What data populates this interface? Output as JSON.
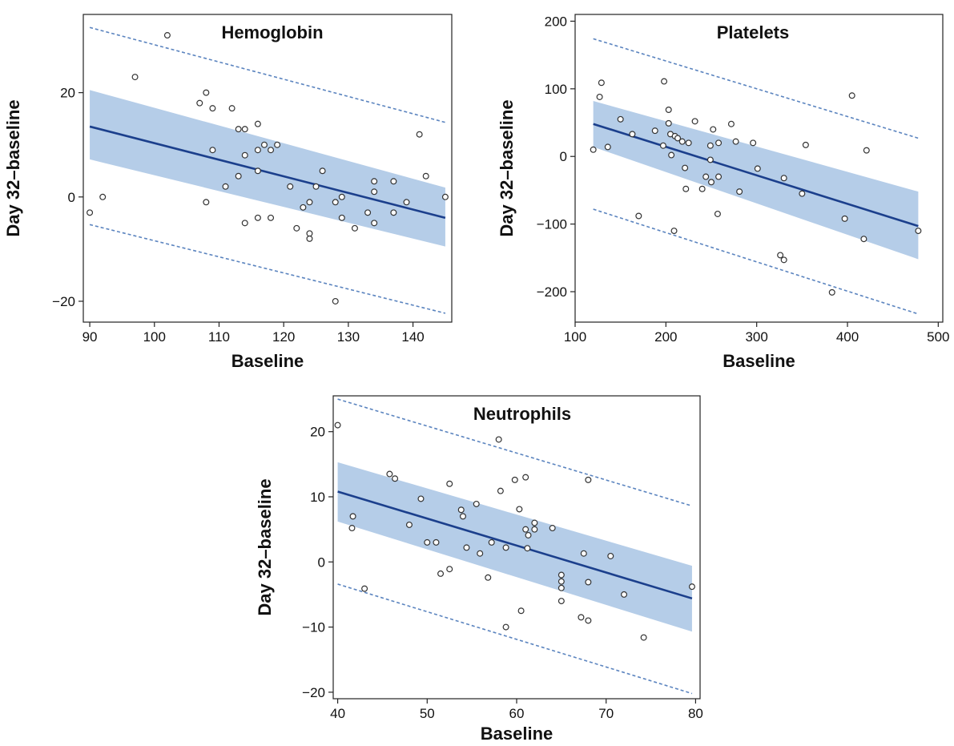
{
  "chart_data": [
    {
      "type": "scatter",
      "title": "Hemoglobin",
      "xlabel": "Baseline",
      "ylabel": "Day 32–baseline",
      "xlim": [
        89,
        146
      ],
      "ylim": [
        -24,
        35
      ],
      "xticks": [
        90,
        100,
        110,
        120,
        130,
        140
      ],
      "yticks": [
        -20,
        0,
        20
      ],
      "ytick_labels": [
        "−20",
        "0",
        "20"
      ],
      "grid": false,
      "points": [
        [
          90,
          -3
        ],
        [
          92,
          0
        ],
        [
          97,
          23
        ],
        [
          102,
          31
        ],
        [
          107,
          18
        ],
        [
          108,
          20
        ],
        [
          108,
          -1
        ],
        [
          109,
          17
        ],
        [
          109,
          9
        ],
        [
          111,
          2
        ],
        [
          112,
          17
        ],
        [
          113,
          13
        ],
        [
          113,
          4
        ],
        [
          114,
          13
        ],
        [
          114,
          8
        ],
        [
          114,
          -5
        ],
        [
          116,
          14
        ],
        [
          116,
          9
        ],
        [
          116,
          5
        ],
        [
          116,
          -4
        ],
        [
          117,
          10
        ],
        [
          118,
          9
        ],
        [
          118,
          -4
        ],
        [
          119,
          10
        ],
        [
          121,
          2
        ],
        [
          122,
          -6
        ],
        [
          123,
          -2
        ],
        [
          124,
          -1
        ],
        [
          124,
          -7
        ],
        [
          124,
          -8
        ],
        [
          125,
          2
        ],
        [
          126,
          5
        ],
        [
          128,
          -1
        ],
        [
          128,
          -20
        ],
        [
          129,
          0
        ],
        [
          129,
          -4
        ],
        [
          131,
          -6
        ],
        [
          133,
          -3
        ],
        [
          134,
          3
        ],
        [
          134,
          1
        ],
        [
          134,
          -5
        ],
        [
          137,
          3
        ],
        [
          137,
          -3
        ],
        [
          139,
          -1
        ],
        [
          141,
          12
        ],
        [
          142,
          4
        ],
        [
          145,
          0
        ]
      ],
      "fit_line": {
        "x": [
          90,
          145
        ],
        "y": [
          13.5,
          -4.0
        ]
      },
      "confidence_band": {
        "x": [
          90,
          145
        ],
        "upper": [
          20.5,
          1.8
        ],
        "lower": [
          7.2,
          -9.5
        ]
      },
      "prediction_interval": {
        "x": [
          90,
          145
        ],
        "upper": [
          32.5,
          14.3
        ],
        "lower": [
          -5.3,
          -22.3
        ]
      }
    },
    {
      "type": "scatter",
      "title": "Platelets",
      "xlabel": "Baseline",
      "ylabel": "Day 32–baseline",
      "xlim": [
        100,
        505
      ],
      "ylim": [
        -245,
        210
      ],
      "xticks": [
        100,
        200,
        300,
        400,
        500
      ],
      "yticks": [
        -200,
        -100,
        0,
        100,
        200
      ],
      "ytick_labels": [
        "−200",
        "−100",
        "0",
        "100",
        "200"
      ],
      "grid": false,
      "points": [
        [
          120,
          10
        ],
        [
          127,
          88
        ],
        [
          129,
          109
        ],
        [
          136,
          14
        ],
        [
          150,
          55
        ],
        [
          163,
          33
        ],
        [
          170,
          -88
        ],
        [
          188,
          38
        ],
        [
          197,
          16
        ],
        [
          198,
          111
        ],
        [
          203,
          69
        ],
        [
          203,
          49
        ],
        [
          205,
          33
        ],
        [
          206,
          2
        ],
        [
          209,
          -110
        ],
        [
          210,
          30
        ],
        [
          213,
          27
        ],
        [
          218,
          22
        ],
        [
          221,
          -17
        ],
        [
          222,
          -48
        ],
        [
          225,
          20
        ],
        [
          232,
          52
        ],
        [
          240,
          -48
        ],
        [
          244,
          -30
        ],
        [
          249,
          16
        ],
        [
          249,
          -5
        ],
        [
          250,
          -38
        ],
        [
          252,
          40
        ],
        [
          257,
          -85
        ],
        [
          258,
          20
        ],
        [
          258,
          -30
        ],
        [
          272,
          48
        ],
        [
          277,
          22
        ],
        [
          281,
          -52
        ],
        [
          296,
          20
        ],
        [
          301,
          -18
        ],
        [
          326,
          -146
        ],
        [
          330,
          -153
        ],
        [
          330,
          -32
        ],
        [
          350,
          -55
        ],
        [
          354,
          17
        ],
        [
          383,
          -201
        ],
        [
          397,
          -92
        ],
        [
          405,
          90
        ],
        [
          418,
          -122
        ],
        [
          421,
          9
        ],
        [
          478,
          -110
        ]
      ],
      "fit_line": {
        "x": [
          120,
          478
        ],
        "y": [
          48,
          -103
        ]
      },
      "confidence_band": {
        "x": [
          120,
          478
        ],
        "upper": [
          82,
          -52
        ],
        "lower": [
          14,
          -152
        ]
      },
      "prediction_interval": {
        "x": [
          120,
          478
        ],
        "upper": [
          174,
          27
        ],
        "lower": [
          -78,
          -233
        ]
      }
    },
    {
      "type": "scatter",
      "title": "Neutrophils",
      "xlabel": "Baseline",
      "ylabel": "Day 32–baseline",
      "xlim": [
        39.5,
        80.5
      ],
      "ylim": [
        -21,
        25.5
      ],
      "xticks": [
        40,
        50,
        60,
        70,
        80
      ],
      "yticks": [
        -20,
        -10,
        0,
        10,
        20
      ],
      "ytick_labels": [
        "−20",
        "−10",
        "0",
        "10",
        "20"
      ],
      "grid": false,
      "points": [
        [
          40,
          21
        ],
        [
          41.6,
          5.2
        ],
        [
          41.7,
          7
        ],
        [
          43,
          -4.1
        ],
        [
          45.8,
          13.5
        ],
        [
          46.4,
          12.8
        ],
        [
          48,
          5.7
        ],
        [
          49.3,
          9.7
        ],
        [
          50,
          3
        ],
        [
          51,
          3
        ],
        [
          51.5,
          -1.8
        ],
        [
          52.5,
          12
        ],
        [
          52.5,
          -1.1
        ],
        [
          53.8,
          8
        ],
        [
          54,
          7
        ],
        [
          54.4,
          2.2
        ],
        [
          55.5,
          8.9
        ],
        [
          55.9,
          1.3
        ],
        [
          56.8,
          -2.4
        ],
        [
          57.2,
          3
        ],
        [
          58,
          18.8
        ],
        [
          58.2,
          10.9
        ],
        [
          58.8,
          2.2
        ],
        [
          58.8,
          -10
        ],
        [
          59.8,
          12.6
        ],
        [
          60.3,
          8.1
        ],
        [
          60.5,
          -7.5
        ],
        [
          61,
          13
        ],
        [
          61,
          5
        ],
        [
          61.3,
          4.1
        ],
        [
          61.2,
          2.1
        ],
        [
          62,
          6
        ],
        [
          62,
          5
        ],
        [
          64,
          5.2
        ],
        [
          65,
          -2
        ],
        [
          65,
          -3
        ],
        [
          65,
          -4
        ],
        [
          65,
          -6
        ],
        [
          67.2,
          -8.5
        ],
        [
          67.5,
          1.3
        ],
        [
          68,
          12.6
        ],
        [
          68,
          -3.1
        ],
        [
          68,
          -9
        ],
        [
          70.5,
          0.9
        ],
        [
          72,
          -5
        ],
        [
          74.2,
          -11.6
        ],
        [
          79.6,
          -3.8
        ]
      ],
      "fit_line": {
        "x": [
          40,
          79.6
        ],
        "y": [
          10.8,
          -5.6
        ]
      },
      "confidence_band": {
        "x": [
          40,
          79.6
        ],
        "upper": [
          15.3,
          -0.6
        ],
        "lower": [
          6.2,
          -10.7
        ]
      },
      "prediction_interval": {
        "x": [
          40,
          79.6
        ],
        "upper": [
          25,
          8.6
        ],
        "lower": [
          -3.4,
          -20.2
        ]
      }
    }
  ]
}
